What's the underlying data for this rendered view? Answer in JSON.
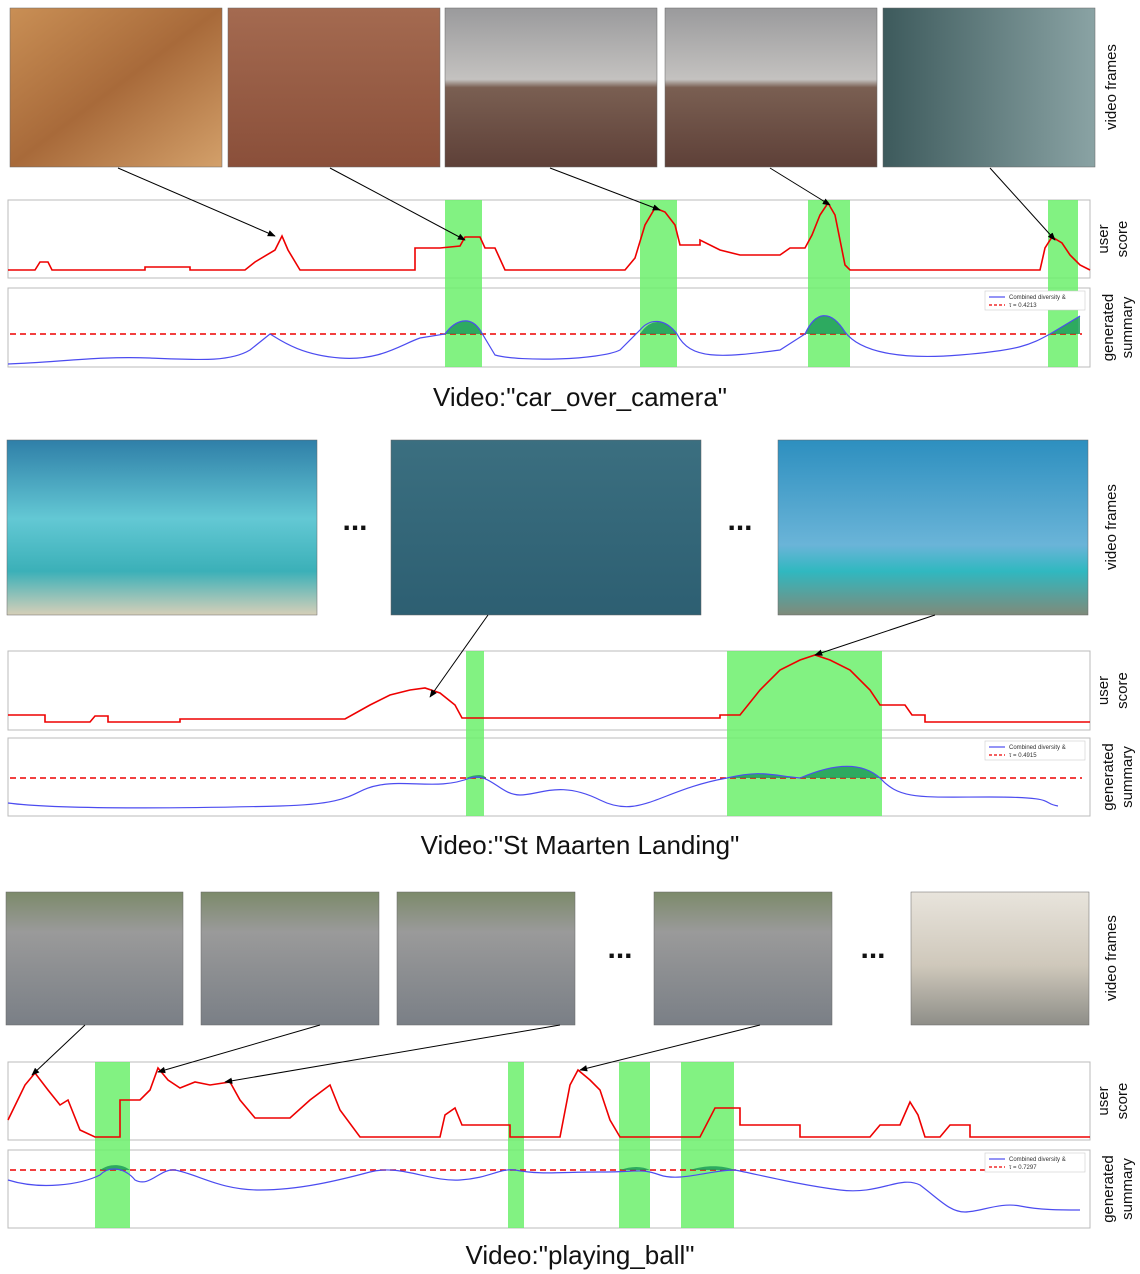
{
  "panels": [
    {
      "frames_label": "video frames",
      "user_score_label": [
        "user",
        "score"
      ],
      "summary_label": [
        "generated",
        "summary"
      ],
      "legend": [
        "Combined diversity &",
        "τ = 0.4213"
      ],
      "ellipses": [],
      "caption": "Video:\"car_over_camera\""
    },
    {
      "frames_label": "video frames",
      "user_score_label": [
        "user",
        "score"
      ],
      "summary_label": [
        "generated",
        "summary"
      ],
      "legend": [
        "Combined diversity &",
        "τ = 0.4915"
      ],
      "ellipses": [
        "...",
        "..."
      ],
      "caption": "Video:\"St Maarten Landing\""
    },
    {
      "frames_label": "video frames",
      "user_score_label": [
        "user",
        "score"
      ],
      "summary_label": [
        "generated",
        "summary"
      ],
      "legend": [
        "Combined diversity &",
        "τ = 0.7297"
      ],
      "ellipses": [
        "...",
        "..."
      ],
      "caption": "Video:\"playing_ball\""
    }
  ]
}
